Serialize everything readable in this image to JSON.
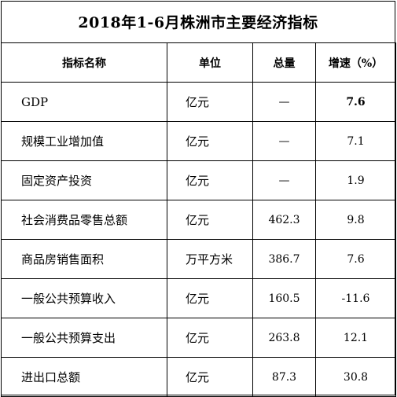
{
  "title": "2018年1-6月株洲市主要经济指标",
  "headers": {
    "name": "指标名称",
    "unit": "单位",
    "total": "总量",
    "growth": "增速（%）"
  },
  "rows": [
    {
      "name": "GDP",
      "unit": "亿元",
      "total": "—",
      "growth": "7.6"
    },
    {
      "name": "规模工业增加值",
      "unit": "亿元",
      "total": "—",
      "growth": "7.1"
    },
    {
      "name": "固定资产投资",
      "unit": "亿元",
      "total": "—",
      "growth": "1.9"
    },
    {
      "name": "社会消费品零售总额",
      "unit": "亿元",
      "total": "462.3",
      "growth": "9.8"
    },
    {
      "name": "商品房销售面积",
      "unit": "万平方米",
      "total": "386.7",
      "growth": "7.6"
    },
    {
      "name": "一般公共预算收入",
      "unit": "亿元",
      "total": "160.5",
      "growth": "-11.6"
    },
    {
      "name": "一般公共预算支出",
      "unit": "亿元",
      "total": "263.8",
      "growth": "12.1"
    },
    {
      "name": "进出口总额",
      "unit": "亿元",
      "total": "87.3",
      "growth": "30.8"
    }
  ]
}
